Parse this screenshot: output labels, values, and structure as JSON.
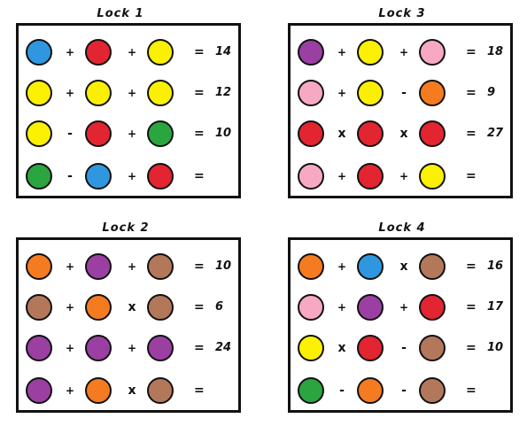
{
  "colors": {
    "blue": "#2e97df",
    "red": "#e32431",
    "yellow": "#fbf000",
    "green": "#2aa540",
    "purple": "#9b3fa2",
    "pink": "#f7a9c3",
    "orange": "#f47b20",
    "brown": "#b3785a"
  },
  "locks": [
    {
      "title": "Lock 1",
      "rows": [
        {
          "c": [
            "blue",
            "red",
            "yellow"
          ],
          "ops": [
            "+",
            "+"
          ],
          "eq": "=",
          "result": "14"
        },
        {
          "c": [
            "yellow",
            "yellow",
            "yellow"
          ],
          "ops": [
            "+",
            "+"
          ],
          "eq": "=",
          "result": "12"
        },
        {
          "c": [
            "yellow",
            "red",
            "green"
          ],
          "ops": [
            "-",
            "+"
          ],
          "eq": "=",
          "result": "10"
        },
        {
          "c": [
            "green",
            "blue",
            "red"
          ],
          "ops": [
            "-",
            "+"
          ],
          "eq": "=",
          "result": ""
        }
      ]
    },
    {
      "title": "Lock 3",
      "rows": [
        {
          "c": [
            "purple",
            "yellow",
            "pink"
          ],
          "ops": [
            "+",
            "+"
          ],
          "eq": "=",
          "result": "18"
        },
        {
          "c": [
            "pink",
            "yellow",
            "orange"
          ],
          "ops": [
            "+",
            "-"
          ],
          "eq": "=",
          "result": "9"
        },
        {
          "c": [
            "red",
            "red",
            "red"
          ],
          "ops": [
            "x",
            "x"
          ],
          "eq": "=",
          "result": "27"
        },
        {
          "c": [
            "pink",
            "red",
            "yellow"
          ],
          "ops": [
            "+",
            "+"
          ],
          "eq": "=",
          "result": ""
        }
      ]
    },
    {
      "title": "Lock 2",
      "rows": [
        {
          "c": [
            "orange",
            "purple",
            "brown"
          ],
          "ops": [
            "+",
            "+"
          ],
          "eq": "=",
          "result": "10"
        },
        {
          "c": [
            "brown",
            "orange",
            "brown"
          ],
          "ops": [
            "+",
            "x"
          ],
          "eq": "=",
          "result": "6"
        },
        {
          "c": [
            "purple",
            "purple",
            "purple"
          ],
          "ops": [
            "+",
            "+"
          ],
          "eq": "=",
          "result": "24"
        },
        {
          "c": [
            "purple",
            "orange",
            "brown"
          ],
          "ops": [
            "+",
            "x"
          ],
          "eq": "=",
          "result": ""
        }
      ]
    },
    {
      "title": "Lock 4",
      "rows": [
        {
          "c": [
            "orange",
            "blue",
            "brown"
          ],
          "ops": [
            "+",
            "x"
          ],
          "eq": "=",
          "result": "16"
        },
        {
          "c": [
            "pink",
            "purple",
            "red"
          ],
          "ops": [
            "+",
            "+"
          ],
          "eq": "=",
          "result": "17"
        },
        {
          "c": [
            "yellow",
            "red",
            "brown"
          ],
          "ops": [
            "x",
            "-"
          ],
          "eq": "=",
          "result": "10"
        },
        {
          "c": [
            "green",
            "orange",
            "brown"
          ],
          "ops": [
            "-",
            "-"
          ],
          "eq": "=",
          "result": ""
        }
      ]
    }
  ]
}
